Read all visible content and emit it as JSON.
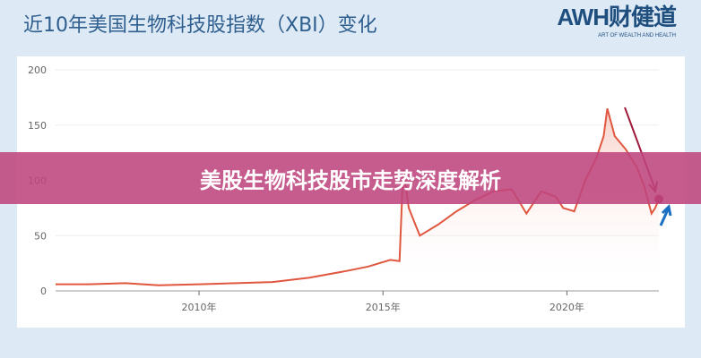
{
  "header": {
    "title": "近10年美国生物科技股指数（XBI）变化",
    "logo": "AWH财健道",
    "logo_tagline": "ART OF WEALTH AND HEALTH"
  },
  "banner": {
    "text": "美股生物科技股市走势深度解析"
  },
  "colors": {
    "line": "#e0573f",
    "down_arrow": "#a0193a",
    "up_arrow": "#1a6fc0",
    "banner": "#be467d"
  },
  "chart_data": {
    "type": "line",
    "title": "近10年美国生物科技股指数（XBI）变化",
    "xlim": [
      2006.1,
      2022.5
    ],
    "ylim": [
      0,
      200
    ],
    "x_ticks": [
      {
        "v": 2010,
        "label": "2010年"
      },
      {
        "v": 2015,
        "label": "2015年"
      },
      {
        "v": 2020,
        "label": "2020年"
      }
    ],
    "y_ticks": [
      0,
      50,
      100,
      150,
      200
    ],
    "grid": true,
    "x": [
      2006.1,
      2007,
      2008,
      2008.9,
      2010,
      2011,
      2012,
      2013,
      2014,
      2014.6,
      2015.2,
      2015.45,
      2015.55,
      2015.7,
      2016.0,
      2016.5,
      2017,
      2017.5,
      2018,
      2018.5,
      2018.9,
      2019.3,
      2019.7,
      2019.9,
      2020.2,
      2020.5,
      2020.8,
      2021.0,
      2021.1,
      2021.3,
      2021.6,
      2021.9,
      2022.1,
      2022.3,
      2022.4,
      2022.5
    ],
    "y": [
      6,
      6,
      7,
      5,
      6,
      7,
      8,
      12,
      18,
      22,
      28,
      27,
      110,
      75,
      50,
      60,
      72,
      82,
      90,
      92,
      70,
      90,
      85,
      75,
      72,
      100,
      120,
      140,
      165,
      140,
      128,
      112,
      95,
      70,
      75,
      83
    ],
    "annotations": [
      "down-arrow",
      "up-arrow",
      "end-point-marker"
    ]
  }
}
